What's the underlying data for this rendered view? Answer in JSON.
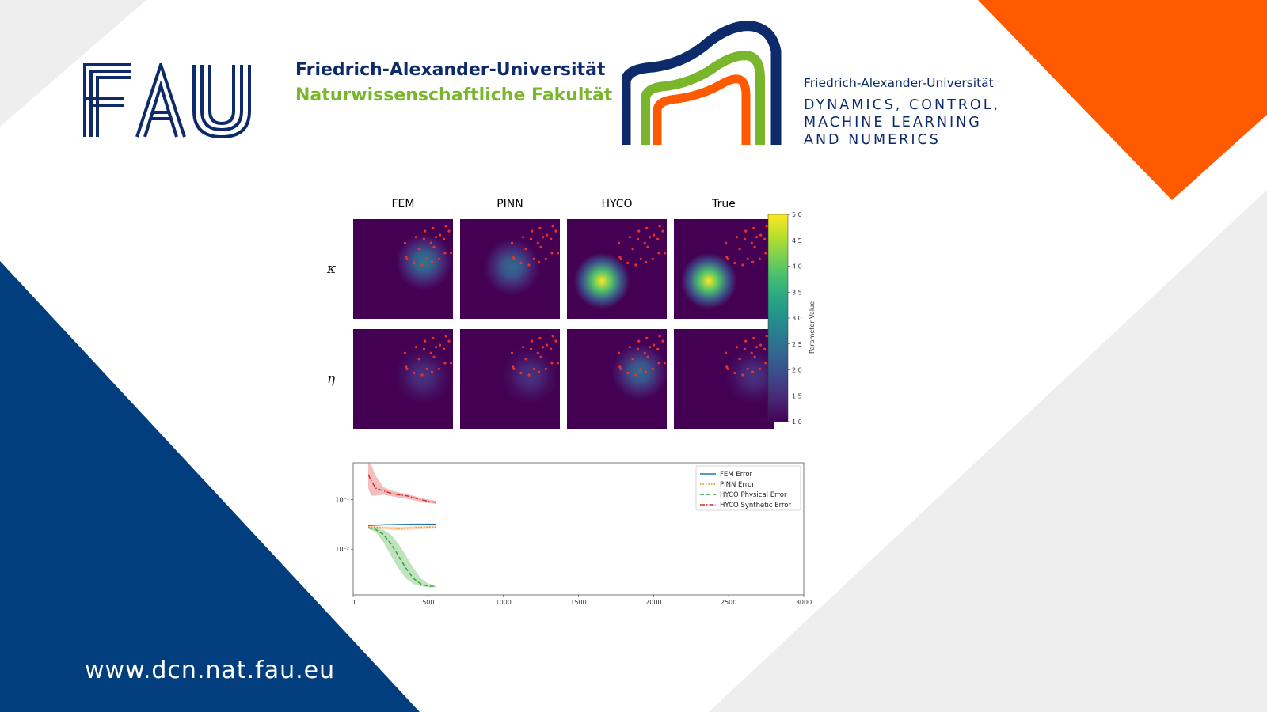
{
  "branding": {
    "fau_logo_text": "FAU",
    "university": "Friedrich-Alexander-Universität",
    "faculty": "Naturwissenschaftliche Fakultät",
    "dcn_university": "Friedrich-Alexander-Universität",
    "dcn_line1": "DYNAMICS, CONTROL,",
    "dcn_line2": "MACHINE LEARNING",
    "dcn_line3": "AND NUMERICS",
    "url": "www.dcn.nat.fau.eu"
  },
  "colors": {
    "fau_blue": "#0d2b6b",
    "fau_green": "#7ab62b",
    "orange": "#ff5a00",
    "dark_blue": "#023e7d",
    "grey": "#eeeeee"
  },
  "chart_data": [
    {
      "type": "heatmap",
      "columns": [
        "FEM",
        "PINN",
        "HYCO",
        "True"
      ],
      "rows": [
        "κ",
        "η"
      ],
      "colorbar": {
        "label": "Parameter Value",
        "range": [
          1.0,
          5.0
        ],
        "ticks": [
          "1.0",
          "1.5",
          "2.0",
          "2.5",
          "3.0",
          "3.5",
          "4.0",
          "4.5",
          "5.0"
        ]
      },
      "panels": [
        {
          "row": 0,
          "col": 0,
          "peak": 2.6,
          "cx": 0.71,
          "cy": 0.43
        },
        {
          "row": 0,
          "col": 1,
          "peak": 2.4,
          "cx": 0.52,
          "cy": 0.48
        },
        {
          "row": 0,
          "col": 2,
          "peak": 5.0,
          "cx": 0.35,
          "cy": 0.62
        },
        {
          "row": 0,
          "col": 3,
          "peak": 5.0,
          "cx": 0.35,
          "cy": 0.62
        },
        {
          "row": 1,
          "col": 0,
          "peak": 1.6,
          "cx": 0.7,
          "cy": 0.47
        },
        {
          "row": 1,
          "col": 1,
          "peak": 1.6,
          "cx": 0.7,
          "cy": 0.47
        },
        {
          "row": 1,
          "col": 2,
          "peak": 2.4,
          "cx": 0.73,
          "cy": 0.43
        },
        {
          "row": 1,
          "col": 3,
          "peak": 1.6,
          "cx": 0.8,
          "cy": 0.47
        }
      ],
      "sensor_points": [
        [
          0.72,
          0.12
        ],
        [
          0.8,
          0.09
        ],
        [
          0.93,
          0.07
        ],
        [
          0.96,
          0.12
        ],
        [
          0.63,
          0.18
        ],
        [
          0.71,
          0.2
        ],
        [
          0.78,
          0.24
        ],
        [
          0.83,
          0.18
        ],
        [
          0.87,
          0.16
        ],
        [
          0.91,
          0.2
        ],
        [
          0.81,
          0.28
        ],
        [
          0.66,
          0.3
        ],
        [
          0.52,
          0.24
        ],
        [
          0.54,
          0.4
        ],
        [
          0.61,
          0.44
        ],
        [
          0.69,
          0.46
        ],
        [
          0.79,
          0.43
        ],
        [
          0.86,
          0.4
        ],
        [
          0.92,
          0.34
        ],
        [
          0.98,
          0.34
        ],
        [
          0.53,
          0.38
        ],
        [
          0.74,
          0.4
        ]
      ]
    },
    {
      "type": "line",
      "x_ticks": [
        "0",
        "500",
        "1000",
        "1500",
        "2000",
        "2500",
        "3000"
      ],
      "xlim": [
        0,
        3000
      ],
      "y_scale": "log",
      "y_ticks": [
        "10⁻¹",
        "10⁻²"
      ],
      "ylim": [
        0.0012,
        0.55
      ],
      "legend_position": "top-right",
      "series": [
        {
          "name": "FEM Error",
          "color": "#1f77b4",
          "style": "solid",
          "x": [
            100,
            200,
            300,
            400,
            550
          ],
          "y": [
            0.03,
            0.031,
            0.0315,
            0.032,
            0.032
          ]
        },
        {
          "name": "PINN Error",
          "color": "#ff7f0e",
          "style": "dotted",
          "x": [
            100,
            200,
            300,
            400,
            550
          ],
          "y": [
            0.028,
            0.027,
            0.026,
            0.027,
            0.028
          ],
          "band_low": [
            0.026,
            0.0255,
            0.024,
            0.025,
            0.026
          ],
          "band_high": [
            0.03,
            0.0285,
            0.028,
            0.029,
            0.03
          ]
        },
        {
          "name": "HYCO Physical Error",
          "color": "#2ca02c",
          "style": "dashed",
          "x": [
            100,
            150,
            200,
            250,
            300,
            350,
            400,
            450,
            500,
            550
          ],
          "y": [
            0.027,
            0.025,
            0.02,
            0.013,
            0.0075,
            0.0042,
            0.0026,
            0.002,
            0.0018,
            0.0018
          ],
          "band_low": [
            0.026,
            0.022,
            0.014,
            0.0075,
            0.0042,
            0.0026,
            0.002,
            0.0018,
            0.0017,
            0.0017
          ],
          "band_high": [
            0.028,
            0.027,
            0.025,
            0.02,
            0.013,
            0.0075,
            0.0042,
            0.0026,
            0.002,
            0.0019
          ]
        },
        {
          "name": "HYCO Synthetic Error",
          "color": "#d62728",
          "style": "dashdot",
          "x": [
            100,
            120,
            150,
            200,
            250,
            300,
            350,
            400,
            450,
            500,
            550
          ],
          "y": [
            0.32,
            0.24,
            0.17,
            0.15,
            0.135,
            0.125,
            0.12,
            0.11,
            0.1,
            0.092,
            0.088
          ],
          "band_low": [
            0.17,
            0.12,
            0.12,
            0.125,
            0.118,
            0.11,
            0.105,
            0.097,
            0.09,
            0.085,
            0.082
          ],
          "band_high": [
            0.55,
            0.5,
            0.3,
            0.18,
            0.155,
            0.14,
            0.13,
            0.12,
            0.108,
            0.1,
            0.095
          ]
        }
      ]
    }
  ]
}
